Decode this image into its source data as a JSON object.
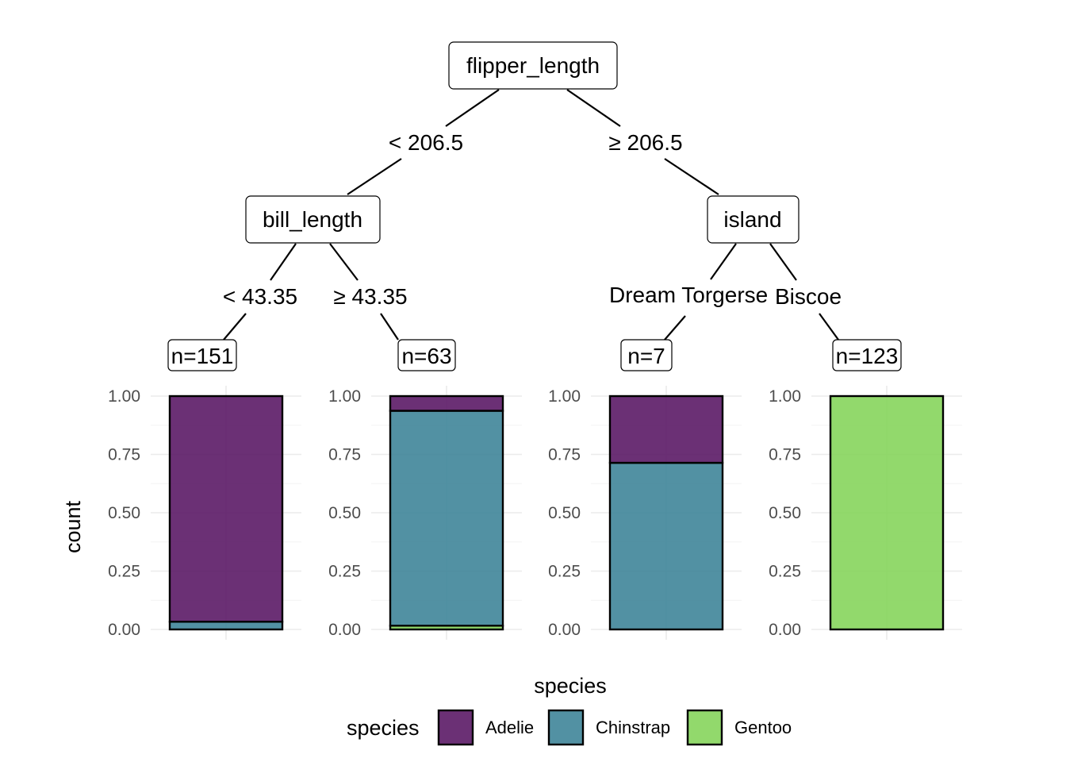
{
  "chart_data": {
    "type": "bar",
    "kind": "decision-tree",
    "tree": {
      "root": {
        "label": "flipper_length"
      },
      "root_splits": {
        "left": "<  206.5",
        "right": "≥  206.5"
      },
      "internal": [
        {
          "label": "bill_length",
          "splits": {
            "left": "<  43.35",
            "right": "≥  43.35"
          }
        },
        {
          "label": "island",
          "splits": {
            "left": "Dream Torgersen",
            "right": "Biscoe"
          }
        }
      ]
    },
    "categories": [
      "n=151",
      "n=63",
      "n=7",
      "n=123"
    ],
    "series": [
      {
        "name": "Adelie",
        "color": "#5b1a66",
        "values": [
          0.967,
          0.063,
          0.286,
          0.0
        ]
      },
      {
        "name": "Chinstrap",
        "color": "#3f8599",
        "values": [
          0.033,
          0.921,
          0.714,
          0.0
        ]
      },
      {
        "name": "Gentoo",
        "color": "#86d55c",
        "values": [
          0.0,
          0.016,
          0.0,
          1.0
        ]
      }
    ],
    "ylim": [
      0,
      1
    ],
    "yticks": [
      "0.00",
      "0.25",
      "0.50",
      "0.75",
      "1.00"
    ],
    "ylabel": "count",
    "xlabel": "species",
    "legend": {
      "title": "species",
      "position": "bottom",
      "entries": [
        "Adelie",
        "Chinstrap",
        "Gentoo"
      ]
    },
    "stacked": true,
    "grid": true
  }
}
